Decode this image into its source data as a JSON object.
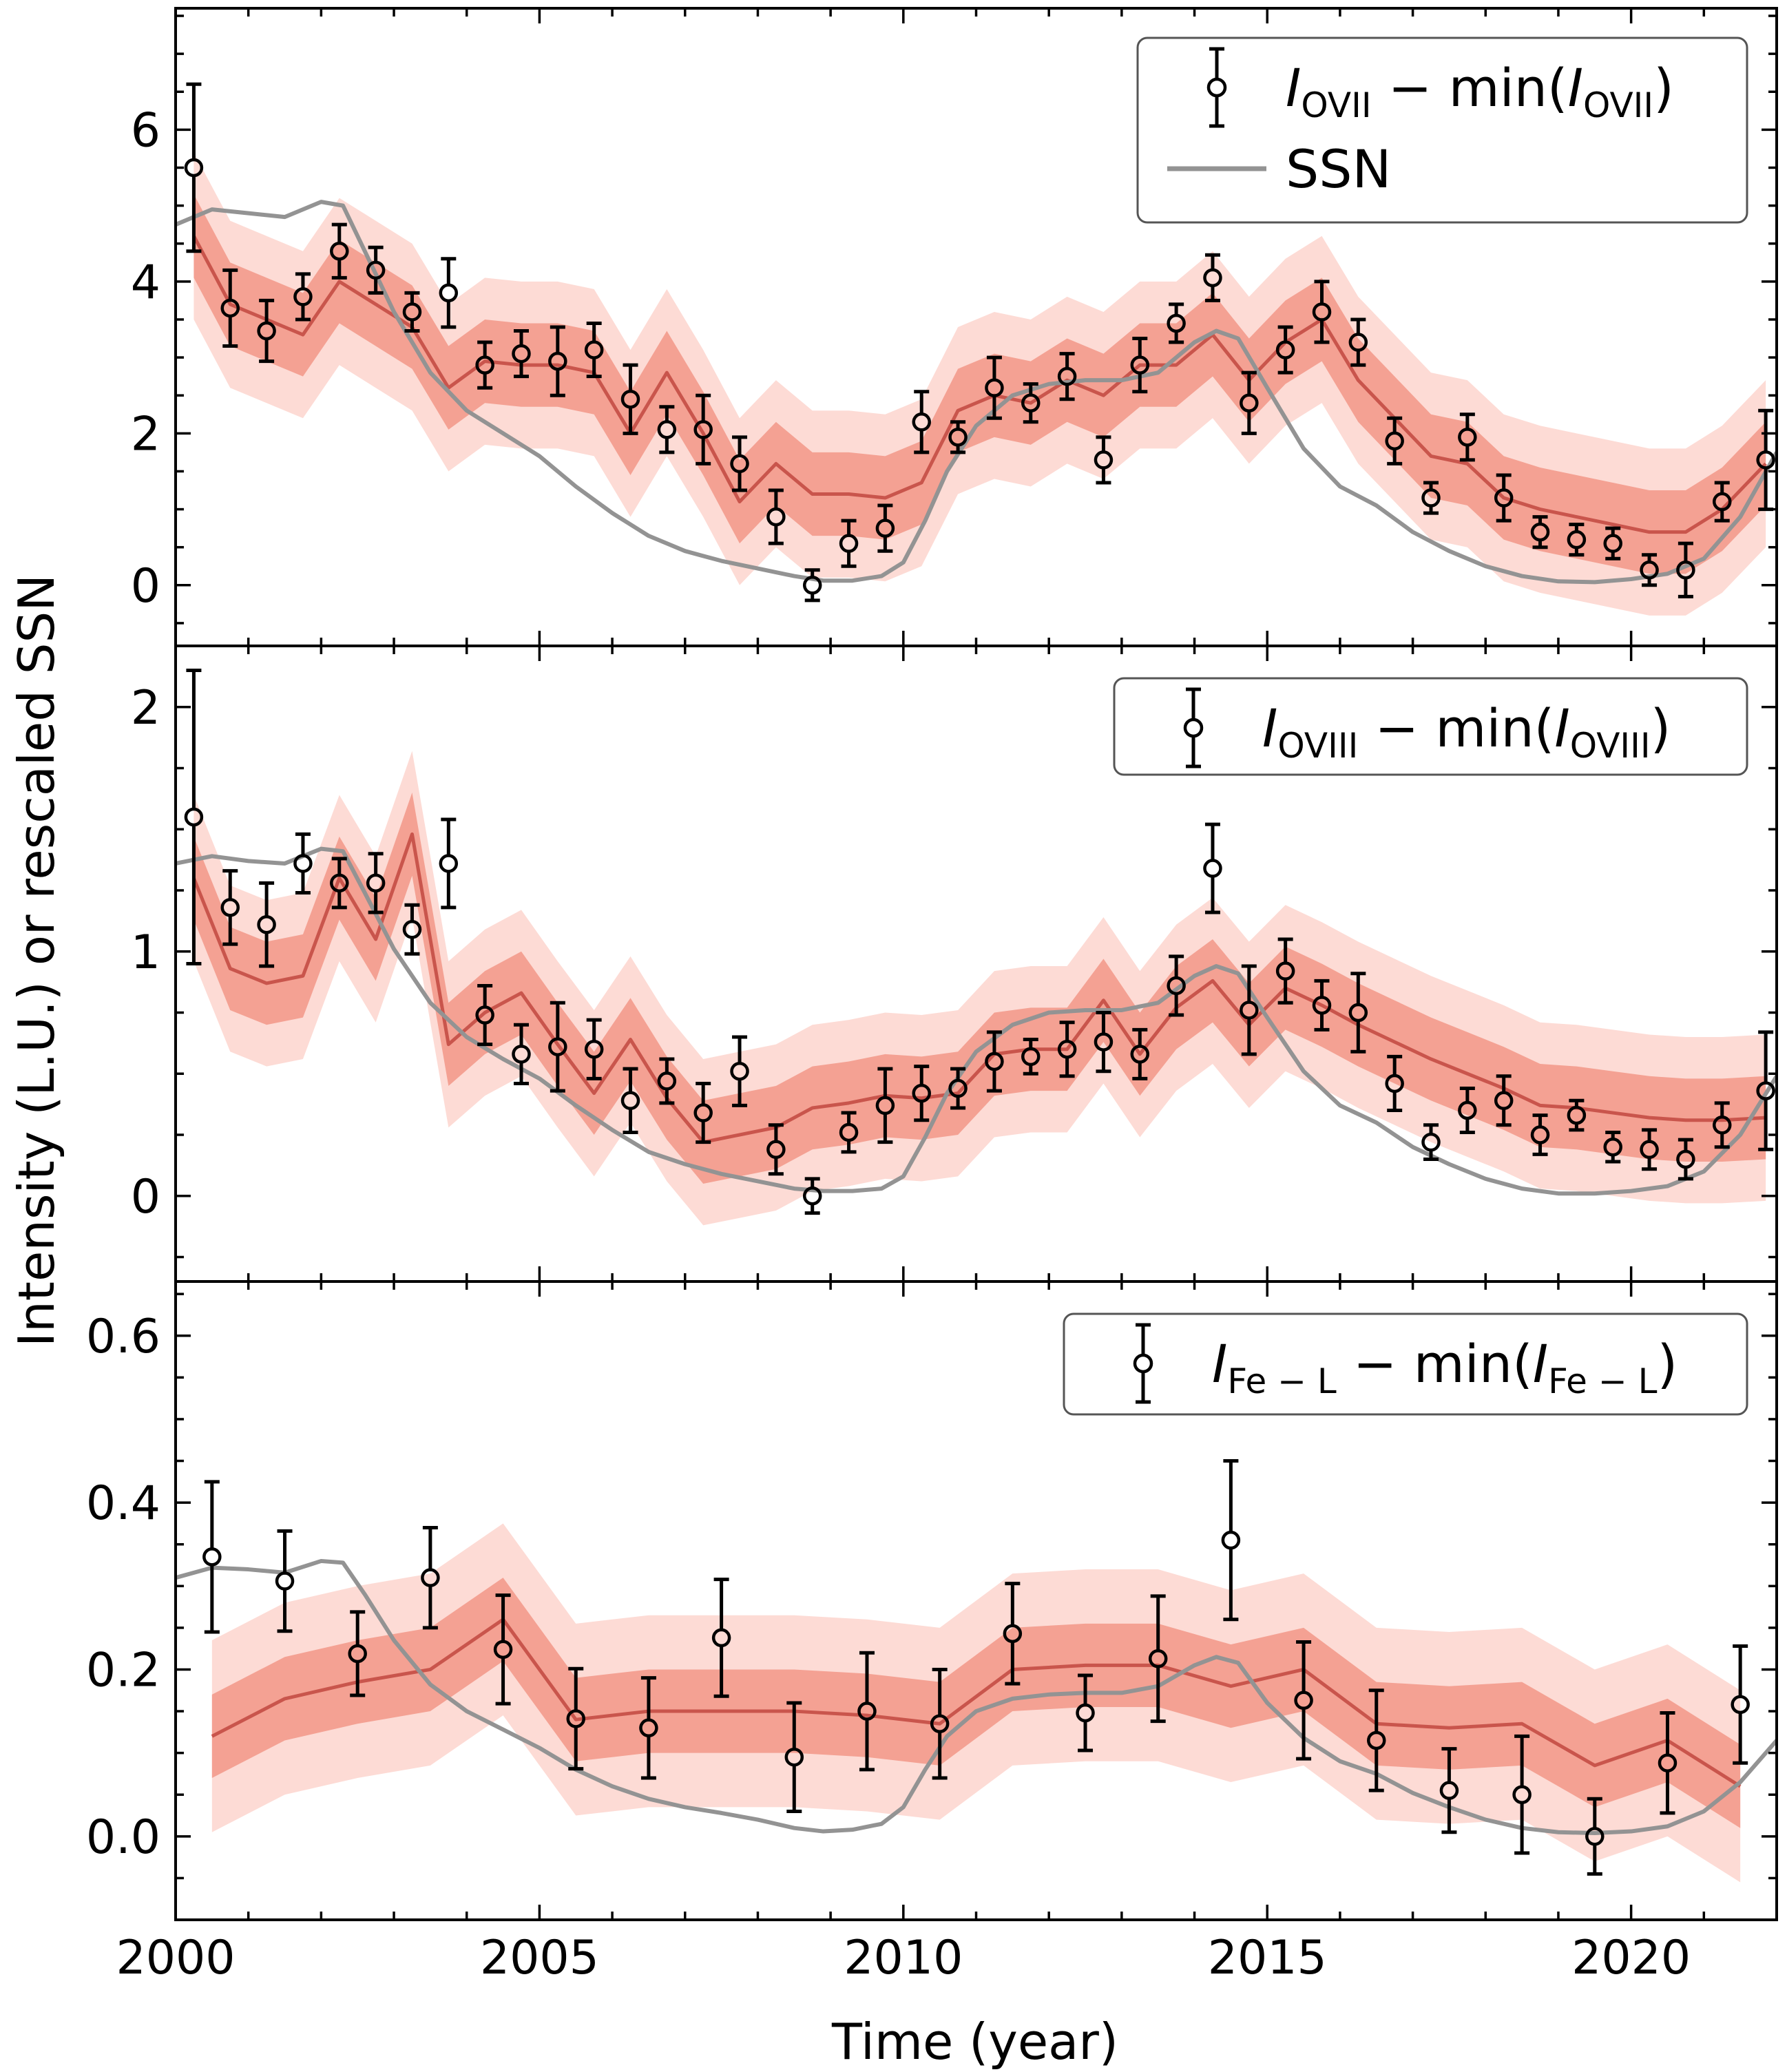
{
  "figure": {
    "xlabel": "Time (year)",
    "ylabel": "Intensity (L.U.) or rescaled SSN"
  },
  "colors": {
    "band_inner": "#f4a193",
    "band_outer": "#fddbd5",
    "model_line": "#c9554c",
    "ssn_line": "#939393",
    "data": "#000000"
  },
  "chart_data": [
    {
      "type": "scatter",
      "panel": "top",
      "ylim": [
        -0.8,
        7.6
      ],
      "yticks": [
        0,
        2,
        4,
        6
      ],
      "ytick_labels": [
        "0",
        "2",
        "4",
        "6"
      ],
      "xlim": [
        2000,
        2022
      ],
      "legend": {
        "position": "top-right",
        "entries": [
          {
            "kind": "errorbar",
            "pre": "I",
            "sub1": "OVII",
            "mid": " − min(",
            "pre2": "I",
            "sub2": "OVII",
            "post": ")"
          },
          {
            "kind": "line",
            "text": "SSN"
          }
        ]
      },
      "data": {
        "x": [
          2000.25,
          2000.75,
          2001.25,
          2001.75,
          2002.25,
          2002.75,
          2003.25,
          2003.75,
          2004.25,
          2004.75,
          2005.25,
          2005.75,
          2006.25,
          2006.75,
          2007.25,
          2007.75,
          2008.25,
          2008.75,
          2009.25,
          2009.75,
          2010.25,
          2010.75,
          2011.25,
          2011.75,
          2012.25,
          2012.75,
          2013.25,
          2013.75,
          2014.25,
          2014.75,
          2015.25,
          2015.75,
          2016.25,
          2016.75,
          2017.25,
          2017.75,
          2018.25,
          2018.75,
          2019.25,
          2019.75,
          2020.25,
          2020.75,
          2021.25,
          2021.85
        ],
        "y": [
          5.5,
          3.65,
          3.35,
          3.8,
          4.4,
          4.15,
          3.6,
          3.85,
          2.9,
          3.05,
          2.95,
          3.1,
          2.45,
          2.05,
          2.05,
          1.6,
          0.9,
          0.0,
          0.55,
          0.75,
          2.15,
          1.95,
          2.6,
          2.4,
          2.75,
          1.65,
          2.9,
          3.45,
          4.05,
          2.4,
          3.1,
          3.6,
          3.2,
          1.9,
          1.15,
          1.95,
          1.15,
          0.7,
          0.6,
          0.55,
          0.2,
          0.2,
          1.1,
          1.65
        ],
        "err": [
          1.1,
          0.5,
          0.4,
          0.3,
          0.35,
          0.3,
          0.25,
          0.45,
          0.3,
          0.3,
          0.45,
          0.35,
          0.45,
          0.3,
          0.45,
          0.35,
          0.35,
          0.2,
          0.3,
          0.3,
          0.4,
          0.2,
          0.4,
          0.25,
          0.3,
          0.3,
          0.35,
          0.25,
          0.3,
          0.4,
          0.3,
          0.4,
          0.3,
          0.3,
          0.2,
          0.3,
          0.3,
          0.2,
          0.2,
          0.2,
          0.2,
          0.35,
          0.25,
          0.65
        ]
      },
      "model": {
        "x": [
          2000.25,
          2000.75,
          2001.25,
          2001.75,
          2002.25,
          2002.75,
          2003.25,
          2003.75,
          2004.25,
          2004.75,
          2005.25,
          2005.75,
          2006.25,
          2006.75,
          2007.25,
          2007.75,
          2008.25,
          2008.75,
          2009.25,
          2009.75,
          2010.25,
          2010.75,
          2011.25,
          2011.75,
          2012.25,
          2012.75,
          2013.25,
          2013.75,
          2014.25,
          2014.75,
          2015.25,
          2015.75,
          2016.25,
          2016.75,
          2017.25,
          2017.75,
          2018.25,
          2018.75,
          2019.25,
          2019.75,
          2020.25,
          2020.75,
          2021.25,
          2021.85
        ],
        "y": [
          4.6,
          3.7,
          3.5,
          3.3,
          4.0,
          3.7,
          3.4,
          2.6,
          2.95,
          2.9,
          2.9,
          2.8,
          2.0,
          2.8,
          2.0,
          1.1,
          1.6,
          1.2,
          1.2,
          1.15,
          1.35,
          2.3,
          2.5,
          2.4,
          2.7,
          2.5,
          2.9,
          2.9,
          3.3,
          2.7,
          3.2,
          3.5,
          2.7,
          2.2,
          1.7,
          1.6,
          1.15,
          1.0,
          0.9,
          0.8,
          0.7,
          0.7,
          1.0,
          1.6
        ],
        "inner": 0.55,
        "outer": 1.1
      },
      "ssn": {
        "x": [
          2000.0,
          2000.5,
          2001.0,
          2001.5,
          2002.0,
          2002.3,
          2002.6,
          2003.0,
          2003.5,
          2004.0,
          2004.5,
          2005.0,
          2005.5,
          2006.0,
          2006.5,
          2007.0,
          2007.5,
          2008.0,
          2008.5,
          2008.9,
          2009.3,
          2009.7,
          2010.0,
          2010.3,
          2010.6,
          2011.0,
          2011.5,
          2012.0,
          2012.5,
          2013.0,
          2013.5,
          2014.0,
          2014.3,
          2014.6,
          2015.0,
          2015.5,
          2016.0,
          2016.5,
          2017.0,
          2017.5,
          2018.0,
          2018.5,
          2019.0,
          2019.5,
          2020.0,
          2020.5,
          2021.0,
          2021.5,
          2022.0
        ],
        "y": [
          4.75,
          4.95,
          4.9,
          4.85,
          5.05,
          5.0,
          4.4,
          3.6,
          2.8,
          2.3,
          2.0,
          1.7,
          1.3,
          0.95,
          0.65,
          0.45,
          0.32,
          0.22,
          0.12,
          0.06,
          0.06,
          0.12,
          0.3,
          0.85,
          1.5,
          2.1,
          2.5,
          2.65,
          2.7,
          2.7,
          2.8,
          3.2,
          3.35,
          3.25,
          2.6,
          1.8,
          1.3,
          1.05,
          0.7,
          0.45,
          0.25,
          0.12,
          0.05,
          0.04,
          0.08,
          0.15,
          0.35,
          0.9,
          1.75
        ]
      }
    },
    {
      "type": "scatter",
      "panel": "middle",
      "ylim": [
        -0.35,
        2.25
      ],
      "yticks": [
        0,
        1,
        2
      ],
      "ytick_labels": [
        "0",
        "1",
        "2"
      ],
      "xlim": [
        2000,
        2022
      ],
      "legend": {
        "position": "top-right",
        "entries": [
          {
            "kind": "errorbar",
            "pre": "I",
            "sub1": "OVIII",
            "mid": " − min(",
            "pre2": "I",
            "sub2": "OVIII",
            "post": ")"
          }
        ]
      },
      "data": {
        "x": [
          2000.25,
          2000.75,
          2001.25,
          2001.75,
          2002.25,
          2002.75,
          2003.25,
          2003.75,
          2004.25,
          2004.75,
          2005.25,
          2005.75,
          2006.25,
          2006.75,
          2007.25,
          2007.75,
          2008.25,
          2008.75,
          2009.25,
          2009.75,
          2010.25,
          2010.75,
          2011.25,
          2011.75,
          2012.25,
          2012.75,
          2013.25,
          2013.75,
          2014.25,
          2014.75,
          2015.25,
          2015.75,
          2016.25,
          2016.75,
          2017.25,
          2017.75,
          2018.25,
          2018.75,
          2019.25,
          2019.75,
          2020.25,
          2020.75,
          2021.25,
          2021.85
        ],
        "y": [
          1.55,
          1.18,
          1.11,
          1.36,
          1.28,
          1.28,
          1.09,
          1.36,
          0.74,
          0.58,
          0.61,
          0.6,
          0.39,
          0.47,
          0.34,
          0.51,
          0.19,
          0.0,
          0.26,
          0.37,
          0.42,
          0.44,
          0.55,
          0.57,
          0.6,
          0.63,
          0.58,
          0.86,
          1.34,
          0.76,
          0.92,
          0.78,
          0.75,
          0.46,
          0.22,
          0.35,
          0.39,
          0.25,
          0.33,
          0.2,
          0.19,
          0.15,
          0.29,
          0.43
        ],
        "err": [
          0.6,
          0.15,
          0.17,
          0.12,
          0.1,
          0.12,
          0.1,
          0.18,
          0.12,
          0.12,
          0.18,
          0.12,
          0.13,
          0.09,
          0.12,
          0.14,
          0.1,
          0.07,
          0.08,
          0.15,
          0.11,
          0.08,
          0.12,
          0.07,
          0.11,
          0.12,
          0.1,
          0.12,
          0.18,
          0.18,
          0.13,
          0.1,
          0.16,
          0.11,
          0.07,
          0.09,
          0.1,
          0.08,
          0.06,
          0.06,
          0.08,
          0.08,
          0.09,
          0.24
        ]
      },
      "model": {
        "x": [
          2000.25,
          2000.75,
          2001.25,
          2001.75,
          2002.25,
          2002.75,
          2003.25,
          2003.75,
          2004.25,
          2004.75,
          2005.25,
          2005.75,
          2006.25,
          2006.75,
          2007.25,
          2007.75,
          2008.25,
          2008.75,
          2009.25,
          2009.75,
          2010.25,
          2010.75,
          2011.25,
          2011.75,
          2012.25,
          2012.75,
          2013.25,
          2013.75,
          2014.25,
          2014.75,
          2015.25,
          2015.75,
          2016.25,
          2016.75,
          2017.25,
          2017.75,
          2018.25,
          2018.75,
          2019.25,
          2019.75,
          2020.25,
          2020.75,
          2021.25,
          2021.85
        ],
        "y": [
          1.3,
          0.93,
          0.87,
          0.9,
          1.3,
          1.05,
          1.48,
          0.62,
          0.75,
          0.83,
          0.62,
          0.42,
          0.64,
          0.4,
          0.22,
          0.25,
          0.28,
          0.36,
          0.38,
          0.41,
          0.4,
          0.42,
          0.58,
          0.6,
          0.6,
          0.8,
          0.58,
          0.77,
          0.88,
          0.7,
          0.85,
          0.78,
          0.7,
          0.63,
          0.56,
          0.5,
          0.44,
          0.37,
          0.36,
          0.34,
          0.32,
          0.31,
          0.31,
          0.32
        ],
        "inner": 0.17,
        "outer": 0.34
      },
      "ssn": {
        "x": [
          2000.0,
          2000.5,
          2001.0,
          2001.5,
          2002.0,
          2002.3,
          2002.6,
          2003.0,
          2003.5,
          2004.0,
          2004.5,
          2005.0,
          2005.5,
          2006.0,
          2006.5,
          2007.0,
          2007.5,
          2008.0,
          2008.5,
          2008.9,
          2009.3,
          2009.7,
          2010.0,
          2010.3,
          2010.6,
          2011.0,
          2011.5,
          2012.0,
          2012.5,
          2013.0,
          2013.5,
          2014.0,
          2014.3,
          2014.6,
          2015.0,
          2015.5,
          2016.0,
          2016.5,
          2017.0,
          2017.5,
          2018.0,
          2018.5,
          2019.0,
          2019.5,
          2020.0,
          2020.5,
          2021.0,
          2021.5,
          2022.0
        ],
        "y": [
          1.36,
          1.39,
          1.37,
          1.36,
          1.42,
          1.41,
          1.24,
          1.01,
          0.79,
          0.65,
          0.56,
          0.48,
          0.37,
          0.27,
          0.18,
          0.13,
          0.09,
          0.06,
          0.03,
          0.02,
          0.02,
          0.03,
          0.08,
          0.24,
          0.42,
          0.59,
          0.7,
          0.75,
          0.76,
          0.76,
          0.79,
          0.9,
          0.94,
          0.91,
          0.73,
          0.51,
          0.37,
          0.3,
          0.2,
          0.13,
          0.07,
          0.03,
          0.01,
          0.01,
          0.02,
          0.04,
          0.1,
          0.25,
          0.49
        ]
      }
    },
    {
      "type": "scatter",
      "panel": "bottom",
      "ylim": [
        -0.1,
        0.665
      ],
      "yticks": [
        0.0,
        0.2,
        0.4,
        0.6
      ],
      "ytick_labels": [
        "0.0",
        "0.2",
        "0.4",
        "0.6"
      ],
      "xlim": [
        2000,
        2022
      ],
      "xticks": [
        2000,
        2005,
        2010,
        2015,
        2020
      ],
      "xtick_labels": [
        "2000",
        "2005",
        "2010",
        "2015",
        "2020"
      ],
      "legend": {
        "position": "top-right",
        "entries": [
          {
            "kind": "errorbar",
            "pre": "I",
            "sub1": "Fe − L",
            "mid": " − min(",
            "pre2": "I",
            "sub2": "Fe − L",
            "post": ")"
          }
        ]
      },
      "data": {
        "x": [
          2000.5,
          2001.5,
          2002.5,
          2003.5,
          2004.5,
          2005.5,
          2006.5,
          2007.5,
          2008.5,
          2009.5,
          2010.5,
          2011.5,
          2012.5,
          2013.5,
          2014.5,
          2015.5,
          2016.5,
          2017.5,
          2018.5,
          2019.5,
          2020.5,
          2021.5
        ],
        "y": [
          0.335,
          0.306,
          0.219,
          0.31,
          0.224,
          0.141,
          0.13,
          0.238,
          0.095,
          0.15,
          0.135,
          0.243,
          0.148,
          0.213,
          0.355,
          0.163,
          0.115,
          0.055,
          0.05,
          0.0,
          0.088,
          0.158
        ],
        "err": [
          0.09,
          0.06,
          0.05,
          0.06,
          0.065,
          0.06,
          0.06,
          0.07,
          0.065,
          0.07,
          0.065,
          0.06,
          0.045,
          0.075,
          0.095,
          0.07,
          0.06,
          0.05,
          0.07,
          0.045,
          0.06,
          0.07
        ]
      },
      "model": {
        "x": [
          2000.5,
          2001.5,
          2002.5,
          2003.5,
          2004.5,
          2005.5,
          2006.5,
          2007.5,
          2008.5,
          2009.5,
          2010.5,
          2011.5,
          2012.5,
          2013.5,
          2014.5,
          2015.5,
          2016.5,
          2017.5,
          2018.5,
          2019.5,
          2020.5,
          2021.5
        ],
        "y": [
          0.12,
          0.165,
          0.185,
          0.2,
          0.26,
          0.14,
          0.15,
          0.15,
          0.15,
          0.145,
          0.135,
          0.2,
          0.205,
          0.205,
          0.18,
          0.2,
          0.135,
          0.13,
          0.135,
          0.085,
          0.115,
          0.06
        ],
        "inner": 0.05,
        "outer": 0.115
      },
      "ssn": {
        "x": [
          2000.0,
          2000.5,
          2001.0,
          2001.5,
          2002.0,
          2002.3,
          2002.6,
          2003.0,
          2003.5,
          2004.0,
          2004.5,
          2005.0,
          2005.5,
          2006.0,
          2006.5,
          2007.0,
          2007.5,
          2008.0,
          2008.5,
          2008.9,
          2009.3,
          2009.7,
          2010.0,
          2010.3,
          2010.6,
          2011.0,
          2011.5,
          2012.0,
          2012.5,
          2013.0,
          2013.5,
          2014.0,
          2014.3,
          2014.6,
          2015.0,
          2015.5,
          2016.0,
          2016.5,
          2017.0,
          2017.5,
          2018.0,
          2018.5,
          2019.0,
          2019.5,
          2020.0,
          2020.5,
          2021.0,
          2021.5,
          2022.0
        ],
        "y": [
          0.31,
          0.322,
          0.32,
          0.316,
          0.33,
          0.328,
          0.29,
          0.235,
          0.182,
          0.15,
          0.128,
          0.106,
          0.08,
          0.06,
          0.045,
          0.035,
          0.028,
          0.02,
          0.01,
          0.006,
          0.008,
          0.015,
          0.035,
          0.08,
          0.12,
          0.15,
          0.165,
          0.17,
          0.172,
          0.172,
          0.18,
          0.205,
          0.215,
          0.208,
          0.16,
          0.118,
          0.09,
          0.075,
          0.052,
          0.035,
          0.02,
          0.01,
          0.005,
          0.004,
          0.006,
          0.012,
          0.03,
          0.065,
          0.115
        ]
      }
    }
  ]
}
